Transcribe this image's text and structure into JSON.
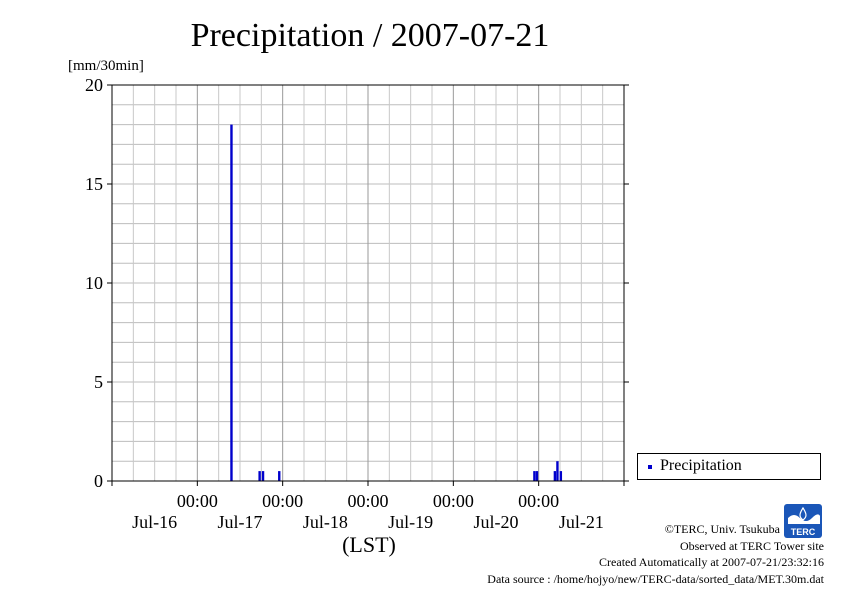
{
  "chart_data": {
    "type": "bar",
    "title": "Precipitation / 2007-07-21",
    "ylabel": "[mm/30min]",
    "xlabel": "(LST)",
    "ylim": [
      0,
      20
    ],
    "yticks": [
      "0",
      "5",
      "10",
      "15",
      "20"
    ],
    "xlim_days": [
      0,
      6
    ],
    "grid": true,
    "legend_position": "right",
    "x_time_labels": [
      {
        "day": 1,
        "time": "00:00",
        "date": "Jul-17"
      },
      {
        "day": 2,
        "time": "00:00",
        "date": "Jul-18"
      },
      {
        "day": 3,
        "time": "00:00",
        "date": "Jul-19"
      },
      {
        "day": 4,
        "time": "00:00",
        "date": "Jul-20"
      },
      {
        "day": 5,
        "time": "00:00",
        "date": "Jul-21"
      }
    ],
    "x_date_labels": [
      {
        "day": 0.5,
        "date": "Jul-16"
      },
      {
        "day": 1.5,
        "date": "Jul-17"
      },
      {
        "day": 2.5,
        "date": "Jul-18"
      },
      {
        "day": 3.5,
        "date": "Jul-19"
      },
      {
        "day": 4.5,
        "date": "Jul-20"
      },
      {
        "day": 5.5,
        "date": "Jul-21"
      }
    ],
    "series": [
      {
        "name": "Precipitation",
        "color": "#0000cc",
        "points": [
          {
            "x": 1.4,
            "y": 18.0
          },
          {
            "x": 1.73,
            "y": 0.5
          },
          {
            "x": 1.77,
            "y": 0.5
          },
          {
            "x": 1.96,
            "y": 0.5
          },
          {
            "x": 4.95,
            "y": 0.5
          },
          {
            "x": 4.98,
            "y": 0.5
          },
          {
            "x": 5.19,
            "y": 0.5
          },
          {
            "x": 5.22,
            "y": 1.0
          },
          {
            "x": 5.26,
            "y": 0.5
          }
        ]
      }
    ]
  },
  "legend": {
    "label": "Precipitation"
  },
  "credits": {
    "line1": "©TERC, Univ. Tsukuba",
    "line2": "Observed at TERC Tower site",
    "line3": "Created Automatically at 2007-07-21/23:32:16",
    "line4": "Data source : /home/hojyo/new/TERC-data/sorted_data/MET.30m.dat"
  },
  "logo": {
    "text": "TERC"
  }
}
